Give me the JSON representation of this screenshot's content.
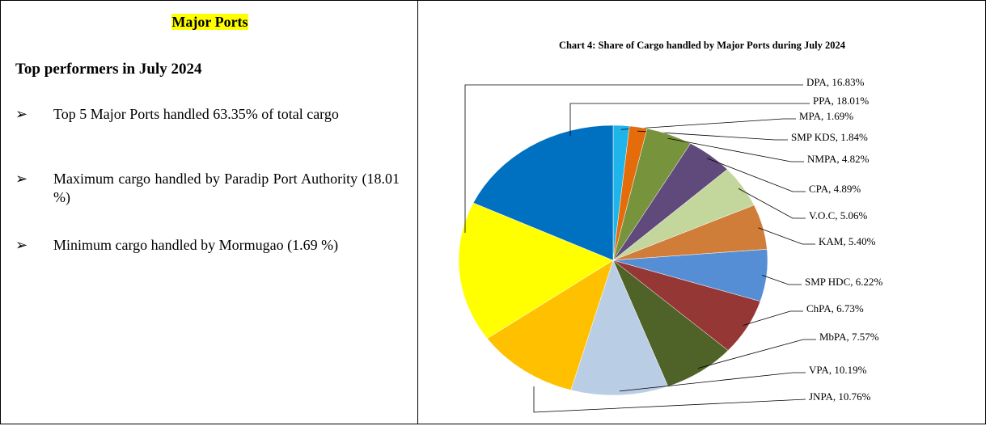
{
  "left": {
    "heading": "Major Ports",
    "subheading": "Top performers in July 2024",
    "bullets": [
      "Top 5 Major Ports handled 63.35% of total cargo",
      "Maximum cargo handled by Paradip Port Authority (18.01 %)",
      "Minimum cargo handled by Mormugao (1.69 %)"
    ]
  },
  "chart_data": {
    "type": "pie",
    "title": "Chart 4: Share of Cargo handled by Major Ports during July 2024",
    "categories": [
      "MPA",
      "SMP KDS",
      "NMPA",
      "CPA",
      "V.O.C",
      "KAM",
      "SMP HDC",
      "ChPA",
      "MbPA",
      "VPA",
      "JNPA",
      "DPA",
      "PPA"
    ],
    "values": [
      1.69,
      1.84,
      4.82,
      4.89,
      5.06,
      5.4,
      6.22,
      6.73,
      7.57,
      10.19,
      10.76,
      16.83,
      18.01
    ],
    "value_labels": [
      "MPA, 1.69%",
      "SMP KDS, 1.84%",
      "NMPA, 4.82%",
      "CPA, 4.89%",
      "V.O.C, 5.06%",
      "KAM, 5.40%",
      "SMP HDC, 6.22%",
      "ChPA, 6.73%",
      "MbPA, 7.57%",
      "VPA, 10.19%",
      "JNPA, 10.76%",
      "DPA, 16.83%",
      "PPA, 18.01%"
    ],
    "colors": [
      "#1fb4ea",
      "#e46c0a",
      "#77933c",
      "#604a7b",
      "#c3d69b",
      "#d07d3a",
      "#558ed5",
      "#953735",
      "#4f6228",
      "#b9cde5",
      "#ffc000",
      "#ffff00",
      "#0070c0"
    ]
  }
}
